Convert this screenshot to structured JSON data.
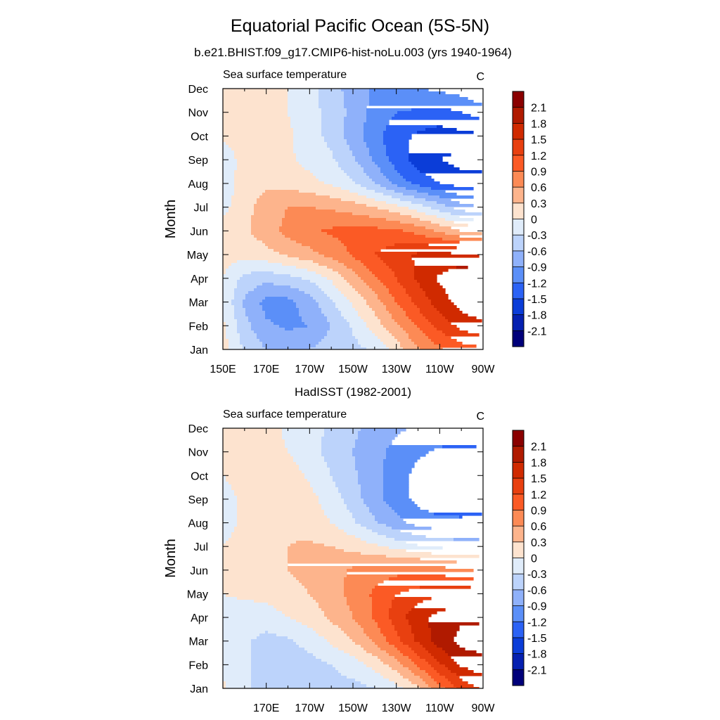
{
  "title": "Equatorial Pacific Ocean (5S-5N)",
  "colorbar": {
    "labels": [
      "2.1",
      "1.8",
      "1.5",
      "1.2",
      "0.9",
      "0.6",
      "0.3",
      "0",
      "-0.3",
      "-0.6",
      "-0.9",
      "-1.2",
      "-1.5",
      "-1.8",
      "-2.1"
    ],
    "colors": [
      "#8a0000",
      "#b01a00",
      "#d02a00",
      "#e84010",
      "#fb5a25",
      "#fc8a55",
      "#fdb48c",
      "#fde3cf",
      "#e0ecfa",
      "#bcd3fb",
      "#8fb1fa",
      "#5b8ff8",
      "#2b62f5",
      "#0b3dd8",
      "#0520b0",
      "#00007a"
    ]
  },
  "chart_data": [
    {
      "type": "heatmap",
      "title": "b.e21.BHIST.f09_g17.CMIP6-hist-noLu.003 (yrs 1940-1964)",
      "left_label": "Sea surface temperature",
      "right_label": "C",
      "ylabel": "Month",
      "yticks": [
        "Jan",
        "Feb",
        "Mar",
        "Apr",
        "May",
        "Jun",
        "Jul",
        "Aug",
        "Sep",
        "Oct",
        "Nov",
        "Dec"
      ],
      "xticks": [
        "150E",
        "170E",
        "170W",
        "150W",
        "130W",
        "110W",
        "90W"
      ],
      "xtick_lon": [
        150,
        170,
        190,
        210,
        230,
        250,
        270
      ],
      "xlim": [
        150,
        270
      ],
      "levels": [
        -2.1,
        -1.8,
        -1.5,
        -1.2,
        -0.9,
        -0.6,
        -0.3,
        0,
        0.3,
        0.6,
        0.9,
        1.2,
        1.5,
        1.8,
        2.1
      ],
      "x": [
        150,
        160,
        170,
        180,
        190,
        200,
        210,
        220,
        230,
        240,
        250,
        260,
        270
      ],
      "z": [
        [
          0.15,
          -0.35,
          -0.6,
          -0.7,
          -0.6,
          -0.45,
          -0.4,
          -0.25,
          0.15,
          0.55,
          0.85,
          1.05,
          1.15
        ],
        [
          0.05,
          -0.5,
          -0.85,
          -0.95,
          -0.9,
          -0.6,
          -0.25,
          0.15,
          0.55,
          0.95,
          1.3,
          1.6,
          1.75
        ],
        [
          -0.05,
          -0.65,
          -1.0,
          -1.0,
          -0.75,
          -0.35,
          0.05,
          0.45,
          0.9,
          1.3,
          1.65,
          1.95,
          2.05
        ],
        [
          0.0,
          -0.4,
          -0.5,
          -0.4,
          -0.25,
          0.05,
          0.45,
          0.85,
          1.2,
          1.55,
          1.85,
          2.05,
          2.05
        ],
        [
          0.1,
          0.1,
          0.2,
          0.35,
          0.5,
          0.7,
          0.95,
          1.2,
          1.4,
          1.55,
          1.6,
          1.55,
          1.45
        ],
        [
          0.15,
          0.25,
          0.45,
          0.7,
          0.85,
          0.95,
          1.0,
          1.0,
          0.95,
          0.8,
          0.55,
          0.3,
          0.15
        ],
        [
          -0.1,
          0.2,
          0.45,
          0.6,
          0.6,
          0.55,
          0.45,
          0.3,
          0.1,
          -0.15,
          -0.45,
          -0.75,
          -0.9
        ],
        [
          -0.2,
          0.15,
          0.25,
          0.2,
          0.1,
          -0.05,
          -0.25,
          -0.6,
          -1.0,
          -1.3,
          -1.5,
          -1.65,
          -1.7
        ],
        [
          -0.15,
          0.1,
          0.15,
          0.05,
          -0.1,
          -0.25,
          -0.55,
          -0.95,
          -1.35,
          -1.65,
          -1.8,
          -1.9,
          -1.9
        ],
        [
          0.05,
          0.1,
          0.1,
          0.05,
          -0.15,
          -0.4,
          -0.75,
          -1.1,
          -1.4,
          -1.55,
          -1.65,
          -1.6,
          -1.55
        ],
        [
          0.1,
          0.1,
          0.1,
          0.0,
          -0.2,
          -0.4,
          -0.7,
          -1.0,
          -1.2,
          -1.25,
          -1.3,
          -1.2,
          -1.05
        ],
        [
          0.15,
          0.1,
          0.1,
          0.0,
          -0.2,
          -0.45,
          -0.75,
          -0.95,
          -0.95,
          -0.9,
          -0.85,
          -0.75,
          -0.6
        ]
      ]
    },
    {
      "type": "heatmap",
      "title": "HadISST (1982-2001)",
      "left_label": "Sea surface temperature",
      "right_label": "C",
      "ylabel": "Month",
      "yticks": [
        "Jan",
        "Feb",
        "Mar",
        "Apr",
        "May",
        "Jun",
        "Jul",
        "Aug",
        "Sep",
        "Oct",
        "Nov",
        "Dec"
      ],
      "xticks": [
        "170E",
        "170W",
        "150W",
        "130W",
        "110W",
        "90W"
      ],
      "xtick_lon": [
        170,
        190,
        210,
        230,
        250,
        270
      ],
      "xlim": [
        150,
        270
      ],
      "levels": [
        -2.1,
        -1.8,
        -1.5,
        -1.2,
        -0.9,
        -0.6,
        -0.3,
        0,
        0.3,
        0.6,
        0.9,
        1.2,
        1.5,
        1.8,
        2.1
      ],
      "x": [
        150,
        160,
        170,
        180,
        190,
        200,
        210,
        220,
        230,
        240,
        250,
        260,
        270
      ],
      "z": [
        [
          0.05,
          -0.25,
          -0.4,
          -0.4,
          -0.4,
          -0.4,
          -0.4,
          -0.3,
          -0.1,
          0.25,
          0.8,
          1.3,
          1.55
        ],
        [
          -0.05,
          -0.25,
          -0.45,
          -0.45,
          -0.4,
          -0.3,
          -0.15,
          0.1,
          0.45,
          0.95,
          1.45,
          1.85,
          2.0
        ],
        [
          -0.1,
          -0.25,
          -0.4,
          -0.35,
          -0.2,
          0.05,
          0.3,
          0.65,
          1.1,
          1.55,
          1.95,
          2.2,
          2.25
        ],
        [
          -0.1,
          -0.15,
          -0.15,
          0.0,
          0.15,
          0.35,
          0.6,
          0.95,
          1.35,
          1.7,
          1.95,
          2.05,
          2.05
        ],
        [
          0.0,
          0.05,
          0.1,
          0.2,
          0.3,
          0.45,
          0.7,
          0.95,
          1.2,
          1.35,
          1.45,
          1.45,
          1.4
        ],
        [
          0.1,
          0.15,
          0.2,
          0.3,
          0.4,
          0.5,
          0.65,
          0.75,
          0.8,
          0.8,
          0.75,
          0.65,
          0.55
        ],
        [
          0.0,
          0.1,
          0.2,
          0.3,
          0.35,
          0.3,
          0.2,
          0.05,
          -0.1,
          -0.25,
          -0.35,
          -0.4,
          -0.4
        ],
        [
          -0.1,
          0.05,
          0.15,
          0.25,
          0.15,
          0.0,
          -0.25,
          -0.55,
          -0.8,
          -1.0,
          -1.1,
          -1.1,
          -1.05
        ],
        [
          -0.1,
          0.05,
          0.2,
          0.3,
          0.1,
          -0.15,
          -0.45,
          -0.8,
          -1.05,
          -1.3,
          -1.45,
          -1.5,
          -1.45
        ],
        [
          0.0,
          0.1,
          0.2,
          0.15,
          -0.05,
          -0.3,
          -0.55,
          -0.8,
          -1.05,
          -1.3,
          -1.45,
          -1.5,
          -1.45
        ],
        [
          0.1,
          0.15,
          0.1,
          0.0,
          -0.2,
          -0.4,
          -0.6,
          -0.8,
          -1.0,
          -1.15,
          -1.25,
          -1.3,
          -1.25
        ],
        [
          0.15,
          0.15,
          0.1,
          -0.05,
          -0.2,
          -0.35,
          -0.55,
          -0.7,
          -0.85,
          -0.95,
          -1.0,
          -1.0,
          -0.95
        ]
      ]
    }
  ]
}
